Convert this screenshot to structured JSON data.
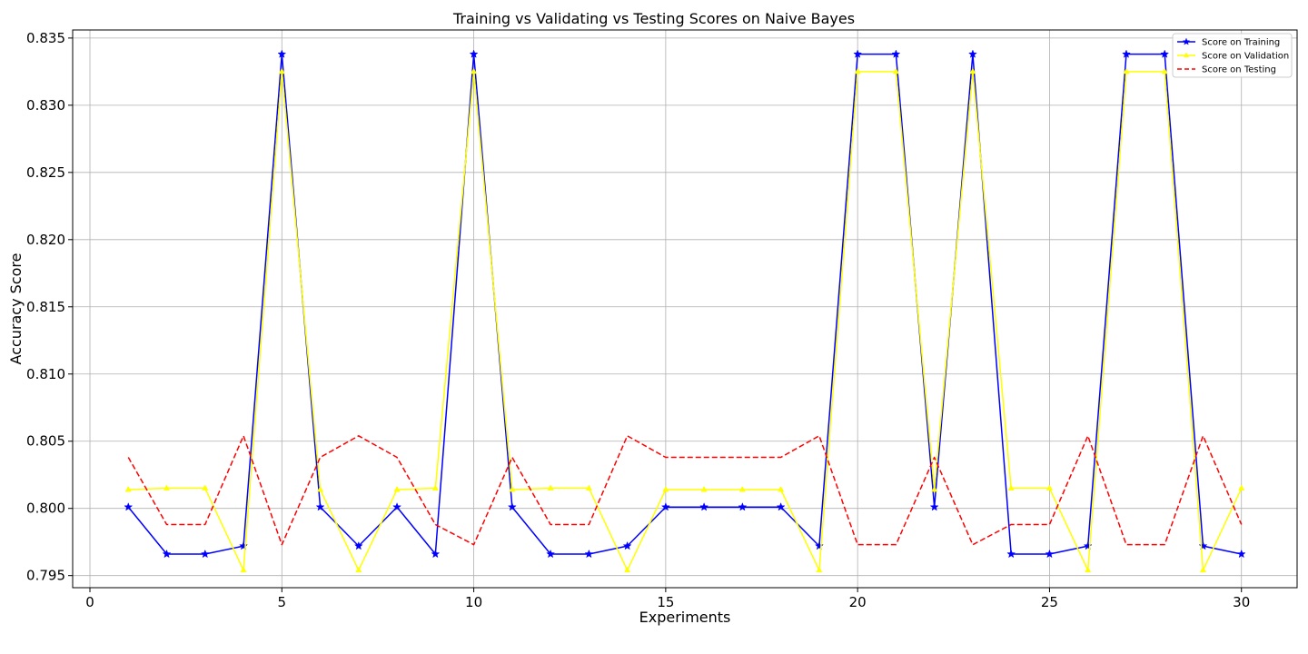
{
  "chart_data": {
    "type": "line",
    "title": "Training vs Validating vs Testing Scores on Naive Bayes",
    "xlabel": "Experiments",
    "ylabel": "Accuracy Score",
    "xlim": [
      -0.45,
      31.45
    ],
    "ylim": [
      0.7941,
      0.8356
    ],
    "xticks": [
      0,
      5,
      10,
      15,
      20,
      25,
      30
    ],
    "xtick_labels": [
      "0",
      "5",
      "10",
      "15",
      "20",
      "25",
      "30"
    ],
    "yticks": [
      0.795,
      0.8,
      0.805,
      0.81,
      0.815,
      0.82,
      0.825,
      0.83,
      0.835
    ],
    "ytick_labels": [
      "0.795",
      "0.800",
      "0.805",
      "0.810",
      "0.815",
      "0.820",
      "0.825",
      "0.830",
      "0.835"
    ],
    "grid": true,
    "legend_position": "top-right",
    "x": [
      1,
      2,
      3,
      4,
      5,
      6,
      7,
      8,
      9,
      10,
      11,
      12,
      13,
      14,
      15,
      16,
      17,
      18,
      19,
      20,
      21,
      22,
      23,
      24,
      25,
      26,
      27,
      28,
      29,
      30
    ],
    "series": [
      {
        "name": "Score on Training",
        "color": "#0000ff",
        "marker": "star",
        "dash": "solid",
        "values": [
          0.8001,
          0.7966,
          0.7966,
          0.7972,
          0.8338,
          0.8001,
          0.7972,
          0.8001,
          0.7966,
          0.8338,
          0.8001,
          0.7966,
          0.7966,
          0.7972,
          0.8001,
          0.8001,
          0.8001,
          0.8001,
          0.7972,
          0.8338,
          0.8338,
          0.8001,
          0.8338,
          0.7966,
          0.7966,
          0.7972,
          0.8338,
          0.8338,
          0.7972,
          0.7966
        ]
      },
      {
        "name": "Score on Validation",
        "color": "#ffff00",
        "marker": "triangle",
        "dash": "solid",
        "values": [
          0.8014,
          0.8015,
          0.8015,
          0.7954,
          0.8325,
          0.8014,
          0.7954,
          0.8014,
          0.8015,
          0.8325,
          0.8014,
          0.8015,
          0.8015,
          0.7954,
          0.8014,
          0.8014,
          0.8014,
          0.8014,
          0.7954,
          0.8325,
          0.8325,
          0.8014,
          0.8325,
          0.8015,
          0.8015,
          0.7954,
          0.8325,
          0.8325,
          0.7954,
          0.8015
        ]
      },
      {
        "name": "Score on Testing",
        "color": "#ff0000",
        "marker": "none",
        "dash": "dashed",
        "values": [
          0.8038,
          0.7988,
          0.7988,
          0.8054,
          0.7973,
          0.8038,
          0.8054,
          0.8038,
          0.7988,
          0.7973,
          0.8038,
          0.7988,
          0.7988,
          0.8054,
          0.8038,
          0.8038,
          0.8038,
          0.8038,
          0.8054,
          0.7973,
          0.7973,
          0.8038,
          0.7973,
          0.7988,
          0.7988,
          0.8054,
          0.7973,
          0.7973,
          0.8054,
          0.7988
        ]
      }
    ]
  }
}
